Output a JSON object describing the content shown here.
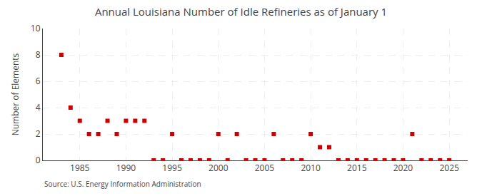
{
  "chart_data": {
    "type": "scatter",
    "title": "Annual Louisiana Number of Idle Refineries as of January 1",
    "ylabel": "Number of Elements",
    "annotations": [
      "Source: U.S. Energy Information Administration"
    ],
    "x": [
      1983,
      1984,
      1985,
      1986,
      1987,
      1988,
      1989,
      1990,
      1991,
      1992,
      1993,
      1994,
      1995,
      1996,
      1997,
      1998,
      1999,
      2000,
      2001,
      2002,
      2003,
      2004,
      2005,
      2006,
      2007,
      2008,
      2009,
      2010,
      2011,
      2012,
      2013,
      2014,
      2015,
      2016,
      2017,
      2018,
      2019,
      2020,
      2021,
      2022,
      2023,
      2024,
      2025
    ],
    "values": [
      8,
      4,
      3,
      2,
      2,
      3,
      2,
      3,
      3,
      3,
      0,
      0,
      2,
      0,
      0,
      0,
      0,
      2,
      0,
      2,
      0,
      0,
      0,
      2,
      0,
      0,
      0,
      2,
      1,
      1,
      0,
      0,
      0,
      0,
      0,
      0,
      0,
      0,
      2,
      0,
      0,
      0,
      0
    ],
    "color": "#cc0000",
    "marker": "square",
    "xlim": [
      1981,
      2027
    ],
    "xticks": [
      1985,
      1990,
      1995,
      2000,
      2005,
      2010,
      2015,
      2020,
      2025
    ],
    "ylim": [
      0,
      10
    ],
    "yticks": [
      0,
      2,
      4,
      6,
      8,
      10
    ],
    "grid": true
  }
}
